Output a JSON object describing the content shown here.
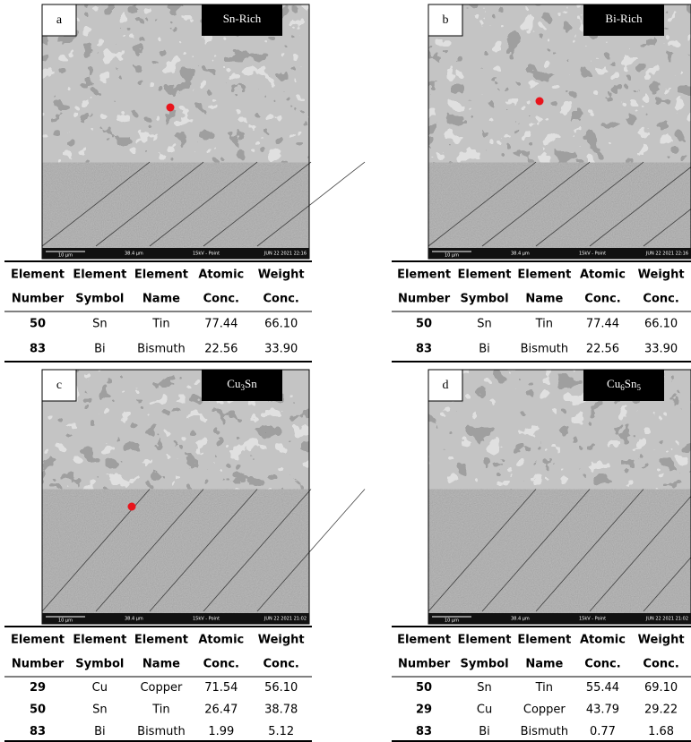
{
  "panels": [
    {
      "letter": "a",
      "label": [
        {
          "text": "Sn-Rich"
        }
      ],
      "image_footer": {
        "scale": "10 µm",
        "field": "38.4 µm",
        "mode": "15kV - Point",
        "date": "JUN 22 2021 22:16"
      },
      "table": {
        "headers": [
          [
            "Element",
            "Number"
          ],
          [
            "Element",
            "Symbol"
          ],
          [
            "Element",
            "Name"
          ],
          [
            "Atomic",
            "Conc."
          ],
          [
            "Weight",
            "Conc."
          ]
        ],
        "rows": [
          [
            "50",
            "Sn",
            "Tin",
            "77.44",
            "66.10"
          ],
          [
            "83",
            "Bi",
            "Bismuth",
            "22.56",
            "33.90"
          ]
        ]
      }
    },
    {
      "letter": "b",
      "label": [
        {
          "text": "Bi-Rich"
        }
      ],
      "image_footer": {
        "scale": "10 µm",
        "field": "38.4 µm",
        "mode": "15kV - Point",
        "date": "JUN 22 2021 22:16"
      },
      "table": {
        "headers": [
          [
            "Element",
            "Number"
          ],
          [
            "Element",
            "Symbol"
          ],
          [
            "Element",
            "Name"
          ],
          [
            "Atomic",
            "Conc."
          ],
          [
            "Weight",
            "Conc."
          ]
        ],
        "rows": [
          [
            "50",
            "Sn",
            "Tin",
            "77.44",
            "66.10"
          ],
          [
            "83",
            "Bi",
            "Bismuth",
            "22.56",
            "33.90"
          ]
        ]
      }
    },
    {
      "letter": "c",
      "label": [
        {
          "text": "Cu"
        },
        {
          "text": "3",
          "sub": true
        },
        {
          "text": "Sn"
        }
      ],
      "image_footer": {
        "scale": "10 µm",
        "field": "38.4 µm",
        "mode": "15kV - Point",
        "date": "JUN 22 2021 21:02"
      },
      "table": {
        "headers": [
          [
            "Element",
            "Number"
          ],
          [
            "Element",
            "Symbol"
          ],
          [
            "Element",
            "Name"
          ],
          [
            "Atomic",
            "Conc."
          ],
          [
            "Weight",
            "Conc."
          ]
        ],
        "rows": [
          [
            "29",
            "Cu",
            "Copper",
            "71.54",
            "56.10"
          ],
          [
            "50",
            "Sn",
            "Tin",
            "26.47",
            "38.78"
          ],
          [
            "83",
            "Bi",
            "Bismuth",
            "1.99",
            "5.12"
          ]
        ]
      }
    },
    {
      "letter": "d",
      "label": [
        {
          "text": "Cu"
        },
        {
          "text": "6",
          "sub": true
        },
        {
          "text": "Sn"
        },
        {
          "text": "5",
          "sub": true
        }
      ],
      "image_footer": {
        "scale": "10 µm",
        "field": "38.4 µm",
        "mode": "15kV - Point",
        "date": "JUN 22 2021 21:02"
      },
      "table": {
        "headers": [
          [
            "Element",
            "Number"
          ],
          [
            "Element",
            "Symbol"
          ],
          [
            "Element",
            "Name"
          ],
          [
            "Atomic",
            "Conc."
          ],
          [
            "Weight",
            "Conc."
          ]
        ],
        "rows": [
          [
            "50",
            "Sn",
            "Tin",
            "55.44",
            "69.10"
          ],
          [
            "29",
            "Cu",
            "Copper",
            "43.79",
            "29.22"
          ],
          [
            "83",
            "Bi",
            "Bismuth",
            "0.77",
            "1.68"
          ]
        ]
      }
    }
  ]
}
